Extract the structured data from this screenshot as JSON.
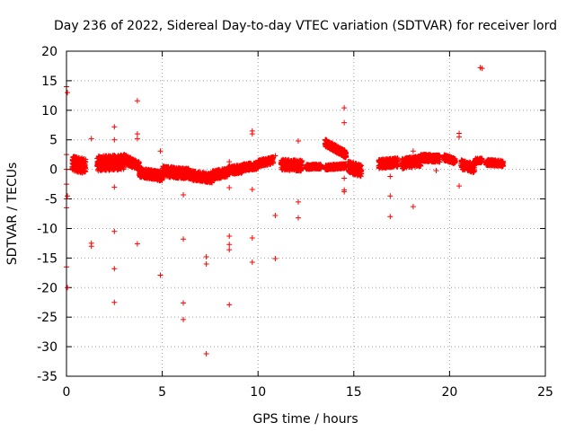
{
  "chart_data": {
    "type": "scatter",
    "title": "Day 236 of 2022, Sidereal Day-to-day VTEC variation (SDTVAR) for receiver lord",
    "xlabel": "GPS time / hours",
    "ylabel": "SDTVAR / TECUs",
    "xlim": [
      0,
      25
    ],
    "ylim": [
      -35,
      20
    ],
    "xticks": [
      0,
      5,
      10,
      15,
      20,
      25
    ],
    "yticks": [
      -35,
      -30,
      -25,
      -20,
      -15,
      -10,
      -5,
      0,
      5,
      10,
      15,
      20
    ],
    "grid": true,
    "marker": "+",
    "color": "#ff0000",
    "dense_segments": [
      {
        "x": [
          0.3,
          1.0
        ],
        "y": [
          1.0,
          0.5
        ],
        "spread": 2.5
      },
      {
        "x": [
          1.6,
          3.0
        ],
        "y": [
          1.0,
          1.2
        ],
        "spread": 2.5
      },
      {
        "x": [
          3.0,
          3.8
        ],
        "y": [
          1.8,
          0.5
        ],
        "spread": 1.5
      },
      {
        "x": [
          3.8,
          5.0
        ],
        "y": [
          -0.5,
          -1.2
        ],
        "spread": 1.6
      },
      {
        "x": [
          5.0,
          6.5
        ],
        "y": [
          -0.3,
          -0.8
        ],
        "spread": 1.8
      },
      {
        "x": [
          6.5,
          7.6
        ],
        "y": [
          -1.0,
          -1.5
        ],
        "spread": 1.6
      },
      {
        "x": [
          7.6,
          8.4
        ],
        "y": [
          -1.0,
          -0.5
        ],
        "spread": 1.5
      },
      {
        "x": [
          8.4,
          9.2
        ],
        "y": [
          -0.2,
          0.1
        ],
        "spread": 1.4
      },
      {
        "x": [
          9.2,
          10.0
        ],
        "y": [
          0.3,
          0.6
        ],
        "spread": 1.2
      },
      {
        "x": [
          10.0,
          10.8
        ],
        "y": [
          1.0,
          1.5
        ],
        "spread": 1.2
      },
      {
        "x": [
          11.2,
          12.3
        ],
        "y": [
          0.8,
          0.6
        ],
        "spread": 1.8
      },
      {
        "x": [
          12.5,
          13.3
        ],
        "y": [
          0.4,
          0.5
        ],
        "spread": 0.8
      },
      {
        "x": [
          13.5,
          14.6
        ],
        "y": [
          4.5,
          2.5
        ],
        "spread": 1.2
      },
      {
        "x": [
          13.5,
          14.6
        ],
        "y": [
          0.3,
          0.6
        ],
        "spread": 0.8
      },
      {
        "x": [
          14.7,
          15.4
        ],
        "y": [
          0.5,
          -0.3
        ],
        "spread": 2.0
      },
      {
        "x": [
          16.3,
          17.3
        ],
        "y": [
          0.9,
          1.2
        ],
        "spread": 1.5
      },
      {
        "x": [
          17.5,
          18.5
        ],
        "y": [
          1.0,
          1.4
        ],
        "spread": 1.8
      },
      {
        "x": [
          18.5,
          19.5
        ],
        "y": [
          2.0,
          1.8
        ],
        "spread": 1.2
      },
      {
        "x": [
          19.7,
          20.3
        ],
        "y": [
          2.0,
          1.4
        ],
        "spread": 1.0
      },
      {
        "x": [
          20.6,
          21.3
        ],
        "y": [
          0.8,
          0.2
        ],
        "spread": 1.6
      },
      {
        "x": [
          21.3,
          21.7
        ],
        "y": [
          1.5,
          1.5
        ],
        "spread": 0.8
      },
      {
        "x": [
          21.9,
          22.8
        ],
        "y": [
          1.2,
          1.0
        ],
        "spread": 1.0
      }
    ],
    "points": [
      {
        "x": 0.0,
        "y": 14.0
      },
      {
        "x": 0.05,
        "y": 13.0
      },
      {
        "x": 0.0,
        "y": 2.5
      },
      {
        "x": 0.0,
        "y": 0.0
      },
      {
        "x": 0.0,
        "y": -2.5
      },
      {
        "x": 0.0,
        "y": -5.0
      },
      {
        "x": 0.05,
        "y": -4.5
      },
      {
        "x": 0.0,
        "y": -6.5
      },
      {
        "x": 0.0,
        "y": -16.5
      },
      {
        "x": 0.05,
        "y": -20.0
      },
      {
        "x": 1.3,
        "y": 5.2
      },
      {
        "x": 1.3,
        "y": -12.5
      },
      {
        "x": 1.3,
        "y": -13.0
      },
      {
        "x": 2.5,
        "y": 7.2
      },
      {
        "x": 2.5,
        "y": 5.0
      },
      {
        "x": 2.5,
        "y": -3.0
      },
      {
        "x": 2.5,
        "y": -10.5
      },
      {
        "x": 2.5,
        "y": -16.8
      },
      {
        "x": 2.5,
        "y": -22.5
      },
      {
        "x": 3.7,
        "y": 11.6
      },
      {
        "x": 3.7,
        "y": 6.0
      },
      {
        "x": 3.7,
        "y": 5.2
      },
      {
        "x": 3.7,
        "y": -12.6
      },
      {
        "x": 4.9,
        "y": 3.1
      },
      {
        "x": 4.9,
        "y": -17.9
      },
      {
        "x": 6.1,
        "y": -4.3
      },
      {
        "x": 6.1,
        "y": -11.8
      },
      {
        "x": 6.1,
        "y": -22.6
      },
      {
        "x": 6.1,
        "y": -25.4
      },
      {
        "x": 7.3,
        "y": -14.8
      },
      {
        "x": 7.3,
        "y": -16.0
      },
      {
        "x": 7.3,
        "y": -31.2
      },
      {
        "x": 8.5,
        "y": 1.3
      },
      {
        "x": 8.5,
        "y": -3.1
      },
      {
        "x": 8.5,
        "y": -11.3
      },
      {
        "x": 8.5,
        "y": -12.7
      },
      {
        "x": 8.5,
        "y": -13.6
      },
      {
        "x": 8.5,
        "y": -22.9
      },
      {
        "x": 9.7,
        "y": 6.5
      },
      {
        "x": 9.7,
        "y": 6.0
      },
      {
        "x": 9.7,
        "y": -3.4
      },
      {
        "x": 9.7,
        "y": -11.6
      },
      {
        "x": 9.7,
        "y": -15.7
      },
      {
        "x": 10.9,
        "y": 2.3
      },
      {
        "x": 10.9,
        "y": -7.8
      },
      {
        "x": 10.9,
        "y": -15.1
      },
      {
        "x": 12.1,
        "y": 4.8
      },
      {
        "x": 12.1,
        "y": -5.5
      },
      {
        "x": 12.1,
        "y": -8.2
      },
      {
        "x": 14.5,
        "y": 10.4
      },
      {
        "x": 14.5,
        "y": 7.9
      },
      {
        "x": 14.5,
        "y": -1.5
      },
      {
        "x": 14.5,
        "y": -3.5
      },
      {
        "x": 14.5,
        "y": -3.8
      },
      {
        "x": 16.9,
        "y": -1.2
      },
      {
        "x": 16.9,
        "y": -4.5
      },
      {
        "x": 16.9,
        "y": -8.0
      },
      {
        "x": 18.1,
        "y": 3.1
      },
      {
        "x": 18.1,
        "y": -6.3
      },
      {
        "x": 19.3,
        "y": -0.2
      },
      {
        "x": 20.5,
        "y": 6.1
      },
      {
        "x": 20.5,
        "y": 5.5
      },
      {
        "x": 20.5,
        "y": -2.8
      },
      {
        "x": 21.6,
        "y": 17.2
      },
      {
        "x": 21.7,
        "y": 17.1
      }
    ]
  }
}
